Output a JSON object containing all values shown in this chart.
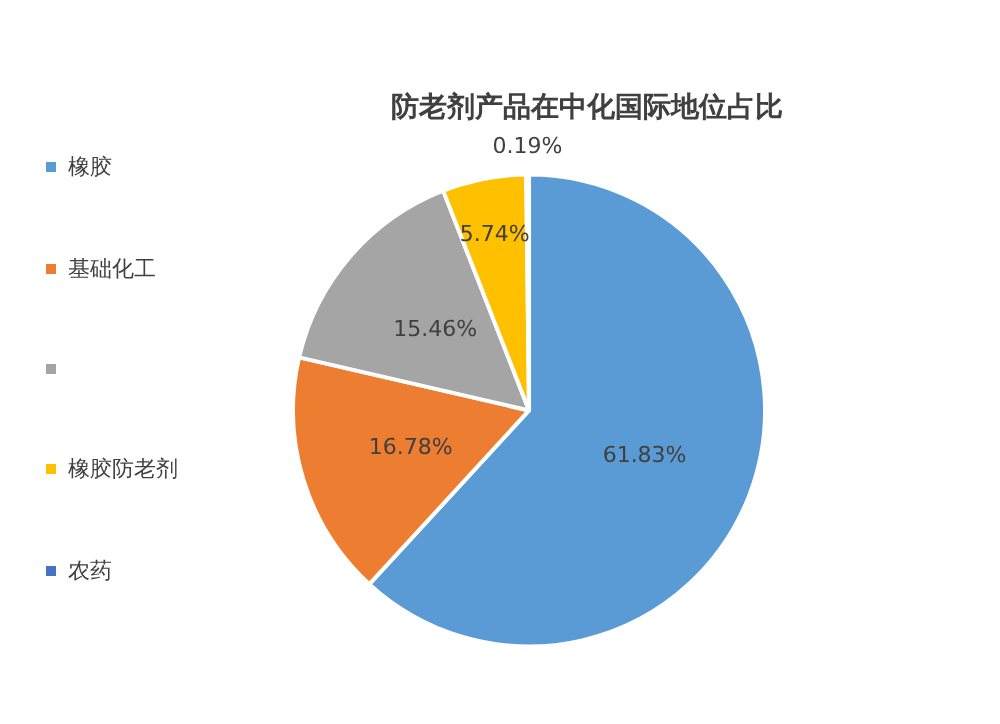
{
  "chart_data": {
    "type": "pie",
    "title": "防老剂产品在中化国际地位占比",
    "categories": [
      "橡胶",
      "基础化工",
      null,
      "橡胶防老剂",
      "农药"
    ],
    "values": [
      61.83,
      16.78,
      15.46,
      5.74,
      0.19
    ],
    "colors": [
      "#5b9bd5",
      "#ed7d31",
      "#a5a5a5",
      "#ffc000",
      "#4472c4"
    ],
    "value_labels": [
      "61.83%",
      "16.78%",
      "15.46%",
      "5.74%",
      "0.19%"
    ],
    "legend": "left"
  }
}
